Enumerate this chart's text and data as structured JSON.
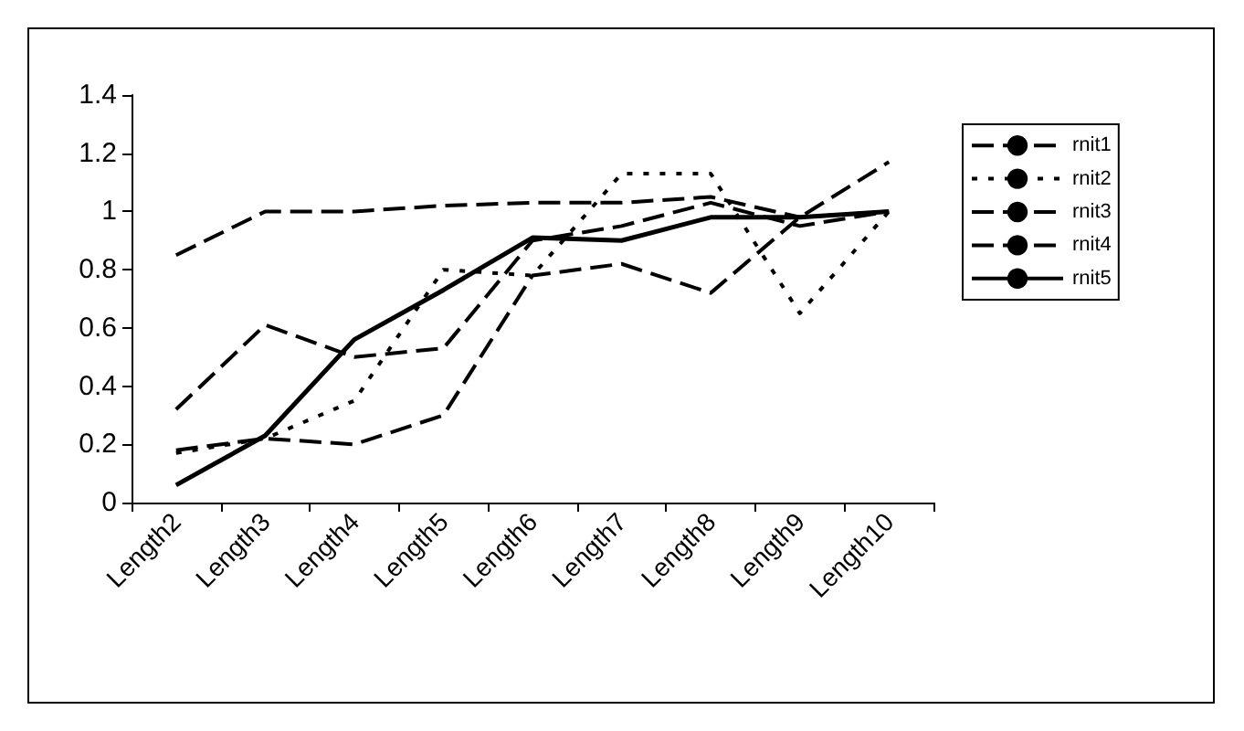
{
  "chart_data": {
    "type": "line",
    "categories": [
      "Length2",
      "Length3",
      "Length4",
      "Length5",
      "Length6",
      "Length7",
      "Length8",
      "Length9",
      "Length10"
    ],
    "series": [
      {
        "name": "rnit1",
        "color": "#000000",
        "line_style": "dashed",
        "values": [
          0.85,
          1.0,
          1.0,
          1.02,
          1.03,
          1.03,
          1.05,
          0.98,
          1.0
        ]
      },
      {
        "name": "rnit2",
        "color": "#000000",
        "line_style": "dotted",
        "values": [
          0.17,
          0.22,
          0.35,
          0.8,
          0.78,
          1.13,
          1.13,
          0.65,
          1.0
        ]
      },
      {
        "name": "rnit3",
        "color": "#000000",
        "line_style": "dashed",
        "values": [
          0.32,
          0.61,
          0.5,
          0.53,
          0.9,
          0.95,
          1.03,
          0.95,
          1.0
        ]
      },
      {
        "name": "rnit4",
        "color": "#000000",
        "line_style": "dashed",
        "values": [
          0.18,
          0.22,
          0.2,
          0.3,
          0.78,
          0.82,
          0.72,
          0.98,
          1.17
        ]
      },
      {
        "name": "rnit5",
        "color": "#000000",
        "line_style": "solid",
        "values": [
          0.06,
          0.23,
          0.56,
          0.73,
          0.91,
          0.9,
          0.98,
          0.98,
          1.0
        ]
      }
    ],
    "ylim": [
      0,
      1.4
    ],
    "yticks": [
      0,
      0.2,
      0.4,
      0.6,
      0.8,
      1,
      1.2,
      1.4
    ],
    "grid": false,
    "legend": "right",
    "marker": "none"
  }
}
